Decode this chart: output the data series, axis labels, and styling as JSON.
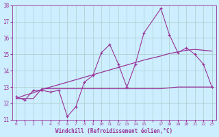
{
  "xlabel": "Windchill (Refroidissement éolien,°C)",
  "bg_color": "#cceeff",
  "grid_color": "#aacccc",
  "line_color": "#993399",
  "xlim": [
    -0.5,
    23.5
  ],
  "ylim": [
    11,
    18
  ],
  "yticks": [
    11,
    12,
    13,
    14,
    15,
    16,
    17,
    18
  ],
  "xtick_labels": [
    "0",
    "1",
    "2",
    "3",
    "4",
    "5",
    "6",
    "7",
    "8",
    "9",
    "10",
    "11",
    "12",
    "13",
    "14",
    "15",
    "",
    "17",
    "18",
    "19",
    "20",
    "21",
    "22",
    "23"
  ],
  "x_data": [
    0,
    1,
    2,
    3,
    4,
    5,
    6,
    7,
    8,
    9,
    10,
    11,
    12,
    13,
    14,
    15,
    17,
    18,
    19,
    20,
    21,
    22,
    23
  ],
  "y_main": [
    12.4,
    12.2,
    12.8,
    12.8,
    12.7,
    12.8,
    11.2,
    11.8,
    13.3,
    13.7,
    15.1,
    15.6,
    14.4,
    13.0,
    14.4,
    16.3,
    17.8,
    16.2,
    15.1,
    15.4,
    15.0,
    14.4,
    13.0
  ],
  "y_trend1": [
    12.3,
    12.5,
    12.65,
    12.85,
    13.0,
    13.15,
    13.3,
    13.45,
    13.6,
    13.75,
    13.9,
    14.05,
    14.2,
    14.35,
    14.5,
    14.65,
    14.9,
    15.05,
    15.15,
    15.25,
    15.3,
    15.25,
    15.2
  ],
  "y_trend2": [
    12.3,
    12.3,
    12.3,
    12.9,
    12.9,
    12.9,
    12.9,
    12.9,
    12.9,
    12.9,
    12.9,
    12.9,
    12.9,
    12.9,
    12.9,
    12.9,
    12.9,
    12.95,
    13.0,
    13.0,
    13.0,
    13.0,
    13.0
  ]
}
